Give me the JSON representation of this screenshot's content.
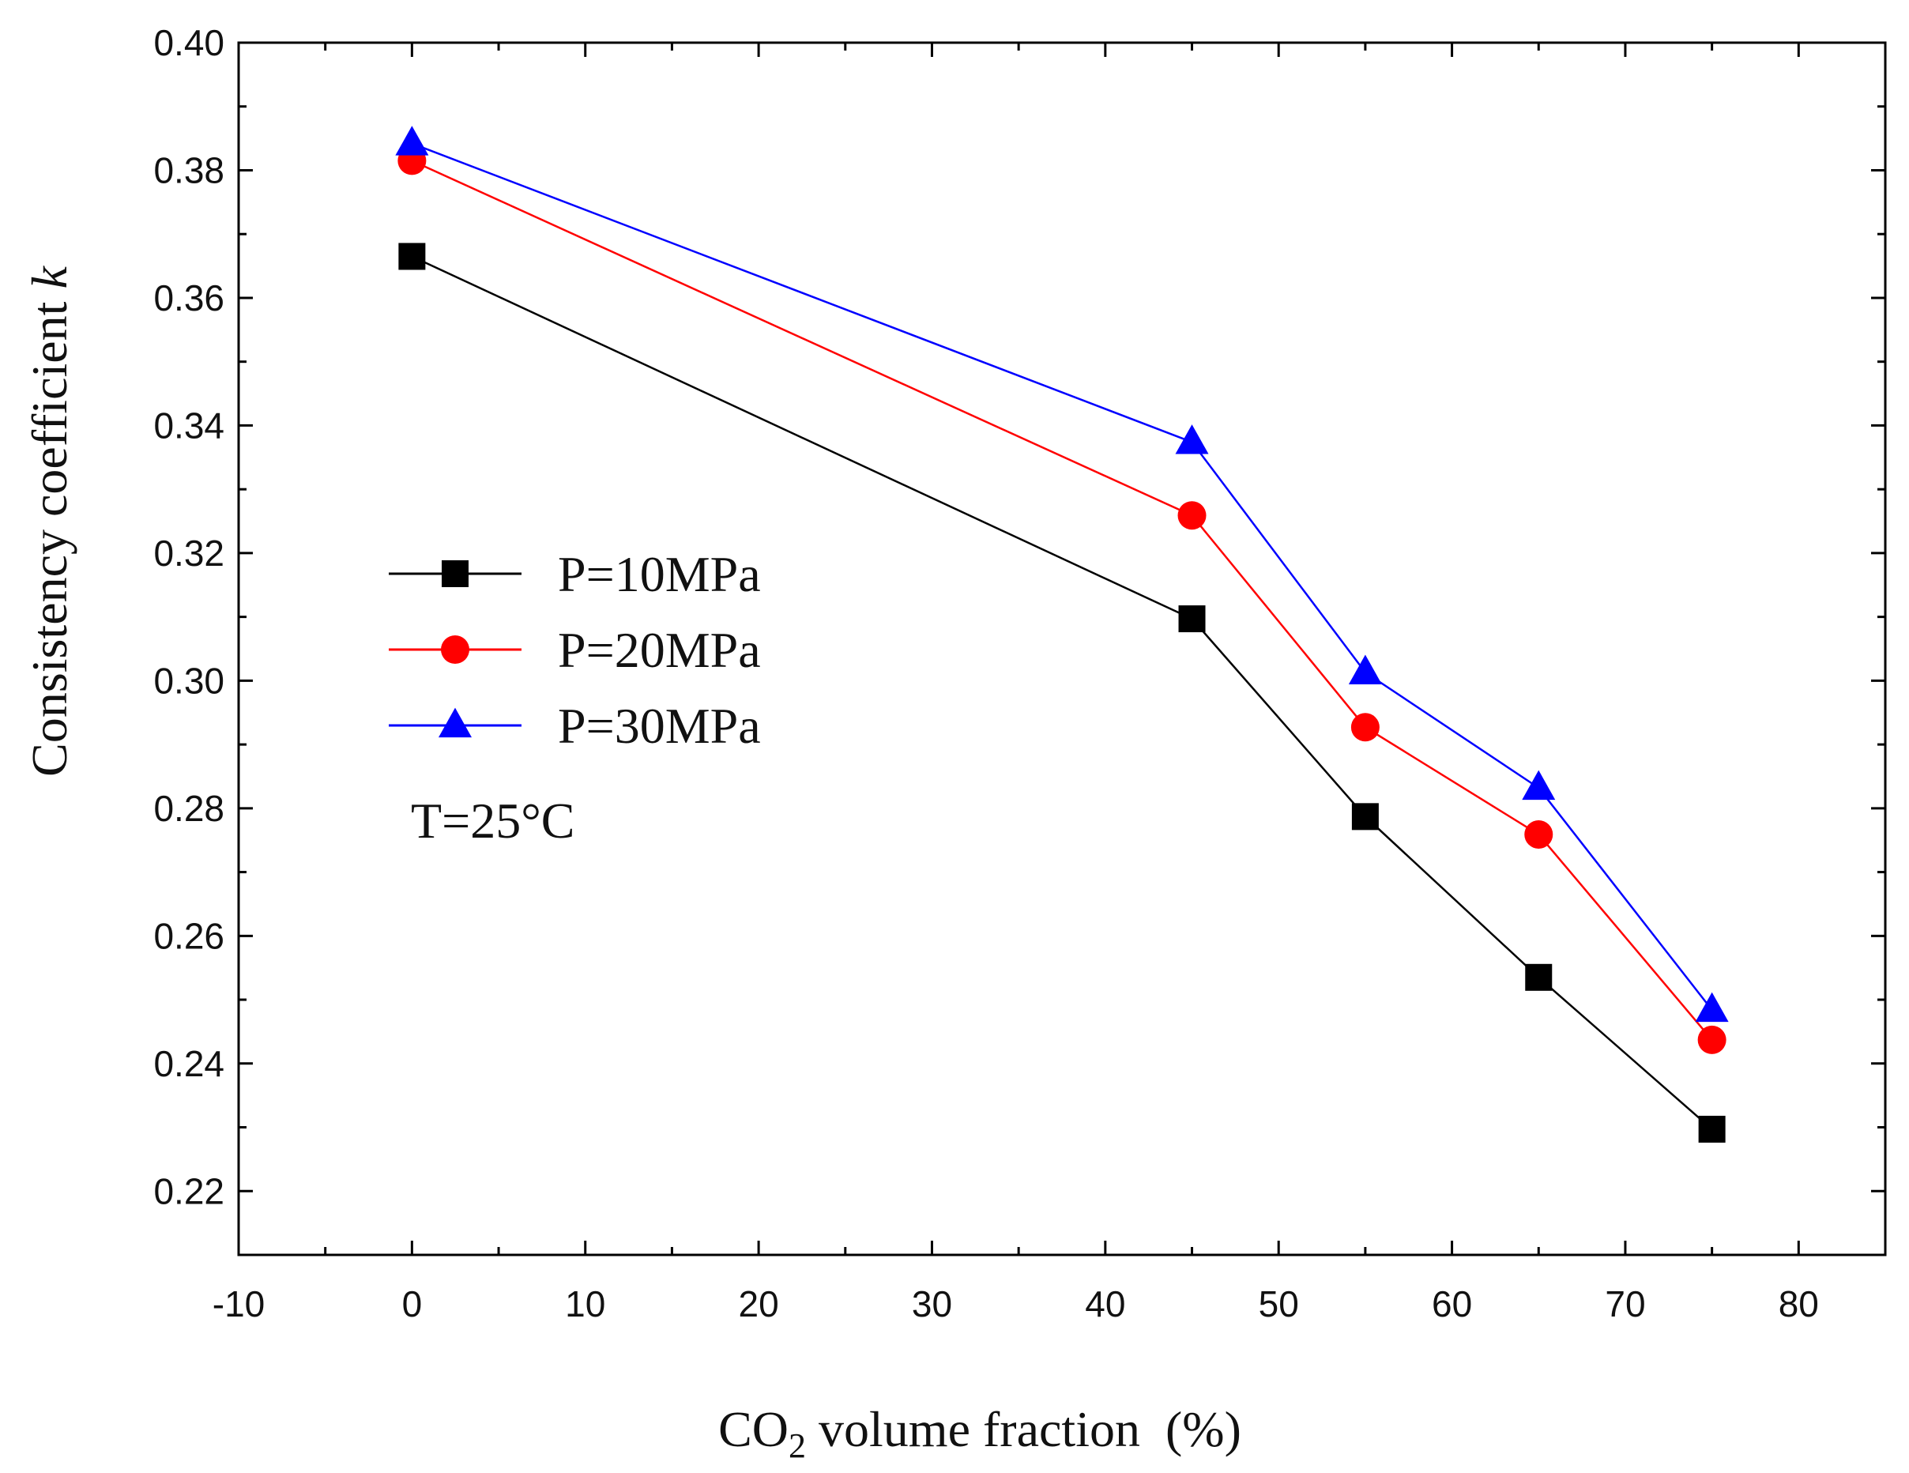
{
  "chart_data": {
    "type": "line",
    "title": "",
    "xlabel": {
      "prefix": "CO",
      "subscript": "2",
      "suffix": " volume fraction  (%)"
    },
    "ylabel": {
      "main": "Consistency coefficient ",
      "italic": "k"
    },
    "xlim": [
      -10,
      85
    ],
    "ylim": [
      0.21,
      0.4
    ],
    "x_ticks": [
      -10,
      0,
      10,
      20,
      30,
      40,
      50,
      60,
      70,
      80
    ],
    "x_tick_labels": [
      "-10",
      "0",
      "10",
      "20",
      "30",
      "40",
      "50",
      "60",
      "70",
      "80"
    ],
    "y_ticks": [
      0.22,
      0.24,
      0.26,
      0.28,
      0.3,
      0.32,
      0.34,
      0.36,
      0.38,
      0.4
    ],
    "y_tick_labels": [
      "0.22",
      "0.24",
      "0.26",
      "0.28",
      "0.30",
      "0.32",
      "0.34",
      "0.36",
      "0.38",
      "0.40"
    ],
    "grid": false,
    "legend_position": "middle-left",
    "x": [
      0,
      45,
      55,
      65,
      75
    ],
    "series": [
      {
        "name": "P=10MPa",
        "color": "#000000",
        "marker": "square",
        "values": [
          0.3665,
          0.3097,
          0.2787,
          0.2535,
          0.2297
        ]
      },
      {
        "name": "P=20MPa",
        "color": "#ff0000",
        "marker": "circle",
        "values": [
          0.3815,
          0.3259,
          0.2927,
          0.2759,
          0.2437
        ]
      },
      {
        "name": "P=30MPa",
        "color": "#0000ff",
        "marker": "triangle",
        "values": [
          0.3842,
          0.3374,
          0.3013,
          0.2832,
          0.2484
        ]
      }
    ],
    "annotations": [
      "T=25°C"
    ]
  }
}
